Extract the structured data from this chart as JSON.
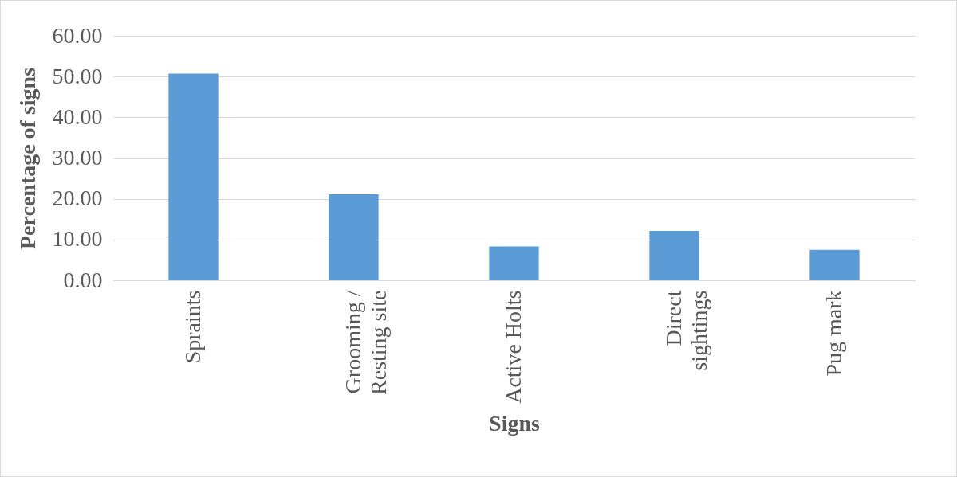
{
  "chart_data": {
    "type": "bar",
    "xlabel": "Signs",
    "ylabel": "Percentage of signs",
    "categories": [
      "Spraints",
      "Grooming / Resting site",
      "Active Holts",
      "Direct sightings",
      "Pug mark"
    ],
    "values": [
      50.7,
      21.1,
      8.3,
      12.1,
      7.5
    ],
    "color": "#5b9bd5",
    "ylim": [
      0,
      60
    ],
    "yticks": [
      {
        "value": 0,
        "label": "0.00"
      },
      {
        "value": 10,
        "label": "10.00"
      },
      {
        "value": 20,
        "label": "20.00"
      },
      {
        "value": 30,
        "label": "30.00"
      },
      {
        "value": 40,
        "label": "40.00"
      },
      {
        "value": 50,
        "label": "50.00"
      },
      {
        "value": 60,
        "label": "60.00"
      }
    ],
    "grid": "y"
  }
}
